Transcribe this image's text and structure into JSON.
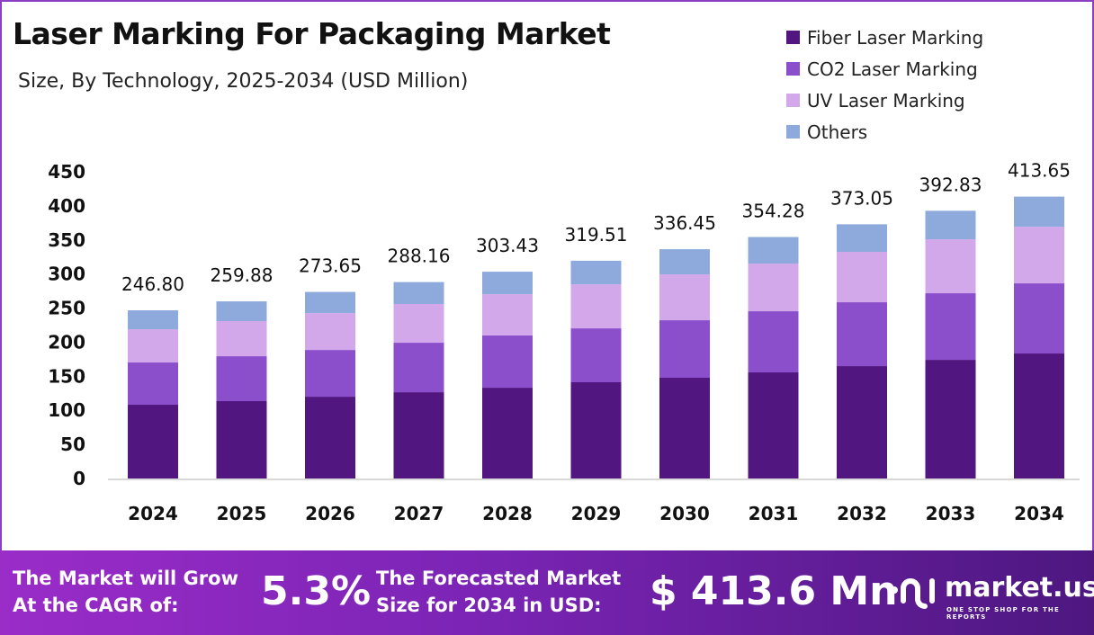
{
  "chart_data": {
    "type": "bar",
    "stacked": true,
    "title": "Laser Marking For Packaging Market",
    "subtitle": "Size, By Technology, 2025-2034 (USD Million)",
    "categories": [
      "2024",
      "2025",
      "2026",
      "2027",
      "2028",
      "2029",
      "2030",
      "2031",
      "2032",
      "2033",
      "2034"
    ],
    "series": [
      {
        "name": "Fiber Laser Marking",
        "color": "#51167f",
        "values": [
          108.2,
          113.5,
          120.0,
          126.6,
          133.2,
          141.2,
          147.8,
          155.7,
          164.9,
          174.1,
          183.4
        ]
      },
      {
        "name": "CO2 Laser Marking",
        "color": "#8b4fcc",
        "values": [
          62.0,
          65.9,
          68.6,
          72.6,
          76.6,
          79.1,
          84.4,
          89.7,
          93.7,
          97.7,
          102.9
        ]
      },
      {
        "name": "UV Laser Marking",
        "color": "#d3a8ea",
        "values": [
          48.8,
          51.5,
          54.1,
          56.8,
          60.6,
          64.6,
          67.3,
          69.9,
          73.9,
          79.1,
          83.1
        ]
      },
      {
        "name": "Others",
        "color": "#8eaadc",
        "values": [
          27.8,
          29.0,
          31.0,
          32.2,
          33.0,
          34.6,
          36.9,
          39.0,
          40.5,
          41.9,
          44.2
        ]
      }
    ],
    "totals": [
      "246.80",
      "259.88",
      "273.65",
      "288.16",
      "303.43",
      "319.51",
      "336.45",
      "354.28",
      "373.05",
      "392.83",
      "413.65"
    ],
    "yticks": [
      "0",
      "50",
      "100",
      "150",
      "200",
      "250",
      "300",
      "350",
      "400",
      "450"
    ],
    "ylim": [
      0,
      450
    ],
    "grid": false,
    "legend": "top-right"
  },
  "footer": {
    "cagr_label_1": "The Market will Grow",
    "cagr_label_2": "At the CAGR of:",
    "cagr_value": "5.3%",
    "forecast_label_1": "The Forecasted Market",
    "forecast_label_2": "Size for 2034 in USD:",
    "forecast_value": "$ 413.6 Mn",
    "logo_name": "market.us",
    "logo_tagline": "ONE STOP SHOP FOR THE REPORTS"
  }
}
